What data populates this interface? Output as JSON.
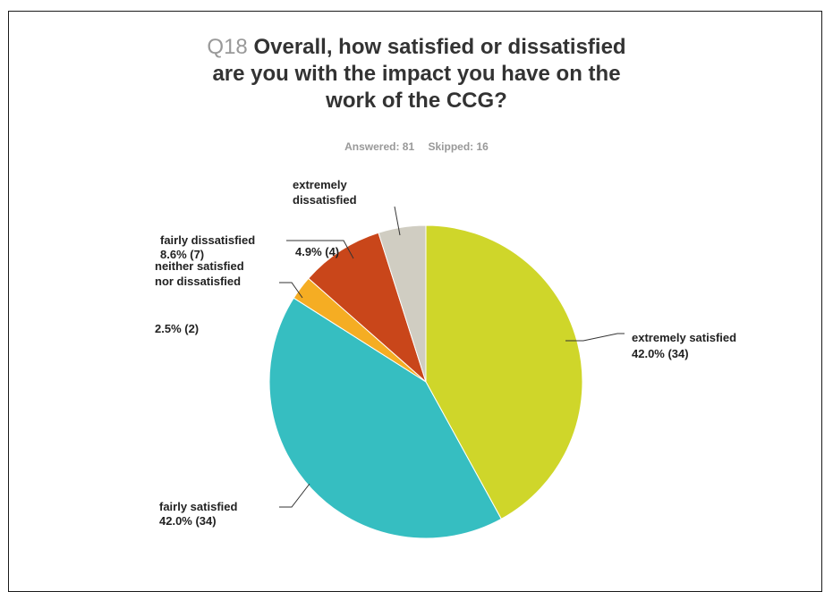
{
  "title": {
    "qnum": "Q18",
    "lines": [
      "Overall, how satisfied or dissatisfied",
      "are you with the impact you have on the",
      "work of the CCG?"
    ]
  },
  "subtitle": {
    "answered": "Answered: 81",
    "skipped": "Skipped: 16"
  },
  "chart_data": {
    "type": "pie",
    "title": "Q18 Overall, how satisfied or dissatisfied are you with the impact you have on the work of the CCG?",
    "slices": [
      {
        "label_lines": [
          "extremely satisfied"
        ],
        "value_text": "42.0% (34)",
        "percent": 42.0,
        "count": 34,
        "color": "#cfd62a"
      },
      {
        "label_lines": [
          "fairly satisfied"
        ],
        "value_text": "42.0% (34)",
        "percent": 42.0,
        "count": 34,
        "color": "#36bec1"
      },
      {
        "label_lines": [
          "neither satisfied",
          "nor dissatisfied"
        ],
        "value_text": "2.5% (2)",
        "percent": 2.5,
        "count": 2,
        "color": "#f5ad23"
      },
      {
        "label_lines": [
          "fairly dissatisfied"
        ],
        "value_text": "8.6% (7)",
        "percent": 8.6,
        "count": 7,
        "color": "#c9461a"
      },
      {
        "label_lines": [
          "extremely",
          "dissatisfied"
        ],
        "value_text": "4.9% (4)",
        "percent": 4.9,
        "count": 4,
        "color": "#d0cdc2"
      }
    ]
  }
}
